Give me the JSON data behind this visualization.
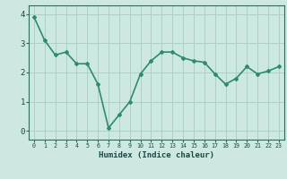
{
  "x": [
    0,
    1,
    2,
    3,
    4,
    5,
    6,
    7,
    8,
    9,
    10,
    11,
    12,
    13,
    14,
    15,
    16,
    17,
    18,
    19,
    20,
    21,
    22,
    23
  ],
  "y": [
    3.9,
    3.1,
    2.6,
    2.7,
    2.3,
    2.3,
    1.6,
    0.1,
    0.55,
    1.0,
    1.95,
    2.4,
    2.7,
    2.7,
    2.5,
    2.4,
    2.35,
    1.95,
    1.6,
    1.8,
    2.2,
    1.95,
    2.05,
    2.2
  ],
  "line_color": "#2e8b72",
  "marker": "D",
  "marker_size": 2.0,
  "bg_color": "#cce8e0",
  "grid_color": "#aed0c8",
  "xlabel": "Humidex (Indice chaleur)",
  "xlim": [
    -0.5,
    23.5
  ],
  "ylim": [
    -0.3,
    4.3
  ],
  "yticks": [
    0,
    1,
    2,
    3,
    4
  ],
  "xticks": [
    0,
    1,
    2,
    3,
    4,
    5,
    6,
    7,
    8,
    9,
    10,
    11,
    12,
    13,
    14,
    15,
    16,
    17,
    18,
    19,
    20,
    21,
    22,
    23
  ],
  "tick_color": "#2e6b60",
  "axis_color": "#2e6b60",
  "font_color": "#1a4a42",
  "line_width": 1.2,
  "xlabel_fontsize": 6.5,
  "xtick_fontsize": 4.8,
  "ytick_fontsize": 6.5
}
